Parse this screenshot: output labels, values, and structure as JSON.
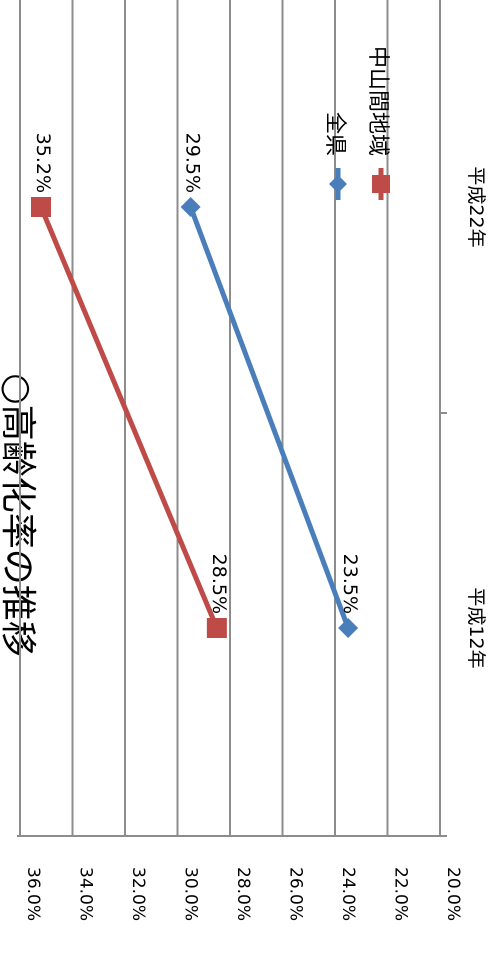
{
  "chart_data": {
    "type": "line",
    "orientation": "rotated-90-clockwise",
    "title": "○高齢化率の推移",
    "categories": [
      "平成12年",
      "平成22年"
    ],
    "y_ticks": [
      "20.0%",
      "22.0%",
      "24.0%",
      "26.0%",
      "28.0%",
      "30.0%",
      "32.0%",
      "34.0%",
      "36.0%"
    ],
    "ylim": [
      20,
      36
    ],
    "grid": true,
    "legend_position": "top-right",
    "series": [
      {
        "name": "全県",
        "values": [
          23.5,
          29.5
        ],
        "labels": [
          "23.5%",
          "29.5%"
        ],
        "color": "#4a7ebb",
        "marker": "diamond"
      },
      {
        "name": "中山間地域",
        "values": [
          28.5,
          35.2
        ],
        "labels": [
          "28.5%",
          "35.2%"
        ],
        "color": "#be4b48",
        "marker": "square"
      }
    ]
  }
}
